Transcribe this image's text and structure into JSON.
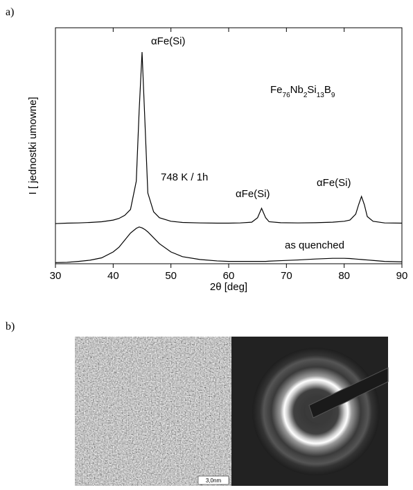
{
  "panel_a_label": "a)",
  "panel_b_label": "b)",
  "scale_bar_label": "3,0nm",
  "chart_data": {
    "type": "line",
    "xlabel": "2θ [deg]",
    "ylabel": "I [ jednostki umowne]",
    "annotations": [
      "αFe(Si)",
      "αFe(Si)",
      "αFe(Si)",
      "Fe76Nb2Si13B9",
      "748 K / 1h",
      "as quenched"
    ],
    "x": [
      30,
      32,
      34,
      36,
      38,
      40,
      41,
      42,
      43,
      44,
      44.5,
      45,
      45.5,
      46,
      47,
      48,
      50,
      52,
      55,
      58,
      60,
      62,
      64,
      65,
      65.7,
      66.4,
      67,
      69,
      72,
      75,
      78,
      80,
      81,
      82,
      82.5,
      83,
      83.5,
      84,
      85,
      87,
      90
    ],
    "series": [
      {
        "color": "#000000",
        "values": [
          17,
          17.2,
          17.3,
          17.5,
          17.8,
          18.5,
          19.2,
          20.5,
          23,
          35,
          65,
          89.7,
          60,
          30,
          22,
          19.5,
          18,
          17.5,
          17.3,
          17.2,
          17.2,
          17.3,
          17.6,
          19.5,
          23.5,
          19.5,
          17.8,
          17.4,
          17.3,
          17.4,
          17.6,
          18,
          18.5,
          21,
          25,
          28.5,
          25,
          20,
          18,
          17.3,
          17.2
        ]
      },
      {
        "color": "#000000",
        "values": [
          0.5,
          0.6,
          1,
          1.5,
          2.5,
          5,
          7,
          10,
          13,
          15,
          15.6,
          15.2,
          14.5,
          13.5,
          11,
          8.5,
          5,
          3,
          1.8,
          1.2,
          1,
          1,
          1,
          1,
          1,
          1,
          1.1,
          1.3,
          1.6,
          2,
          2.3,
          2.3,
          2.2,
          2,
          1.9,
          1.8,
          1.7,
          1.6,
          1.4,
          1,
          0.8
        ]
      }
    ],
    "xlim": [
      30,
      90
    ],
    "xticks": [
      30,
      40,
      50,
      60,
      70,
      80,
      90
    ],
    "ylim": [
      0,
      100
    ]
  }
}
